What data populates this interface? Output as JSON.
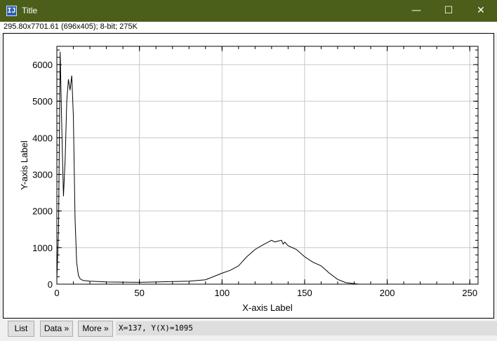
{
  "window": {
    "title": "Title",
    "minimize_glyph": "—",
    "maximize_glyph": "☐",
    "close_glyph": "✕",
    "icon": "imagej-app-icon",
    "icon_text": "IJ"
  },
  "info": {
    "text": "295.80x7701.61   (696x405); 8-bit; 275K"
  },
  "buttons": {
    "list": "List",
    "data": "Data »",
    "more": "More »"
  },
  "readout": {
    "text": "X=137, Y(X)=1095"
  },
  "chart_data": {
    "type": "line",
    "xlabel": "X-axis Label",
    "ylabel": "Y-axis Label",
    "xlim": [
      0,
      255
    ],
    "ylim": [
      0,
      6500
    ],
    "xticks": [
      0,
      50,
      100,
      150,
      200,
      250
    ],
    "yticks": [
      0,
      1000,
      2000,
      3000,
      4000,
      5000,
      6000
    ],
    "grid": true,
    "series": [
      {
        "x": [
          0,
          1,
          2,
          3,
          4,
          5,
          6,
          7,
          8,
          9,
          10,
          11,
          12,
          13,
          14,
          15,
          16,
          18,
          20,
          25,
          30,
          40,
          50,
          60,
          70,
          80,
          90,
          100,
          105,
          110,
          115,
          120,
          125,
          130,
          132,
          134,
          136,
          137,
          138,
          140,
          145,
          150,
          155,
          160,
          165,
          170,
          175,
          180,
          183,
          185,
          190,
          200,
          210,
          220,
          230,
          240,
          250,
          255
        ],
        "y": [
          150,
          1500,
          6350,
          4200,
          2400,
          3400,
          5000,
          5600,
          5300,
          5700,
          4600,
          1800,
          600,
          250,
          150,
          120,
          100,
          90,
          80,
          70,
          60,
          55,
          50,
          60,
          70,
          80,
          120,
          300,
          380,
          500,
          750,
          950,
          1080,
          1200,
          1150,
          1180,
          1200,
          1095,
          1150,
          1050,
          950,
          750,
          600,
          500,
          300,
          130,
          40,
          15,
          0,
          0,
          0,
          0,
          0,
          0,
          0,
          0,
          0,
          0
        ],
        "color": "#000000"
      }
    ]
  }
}
